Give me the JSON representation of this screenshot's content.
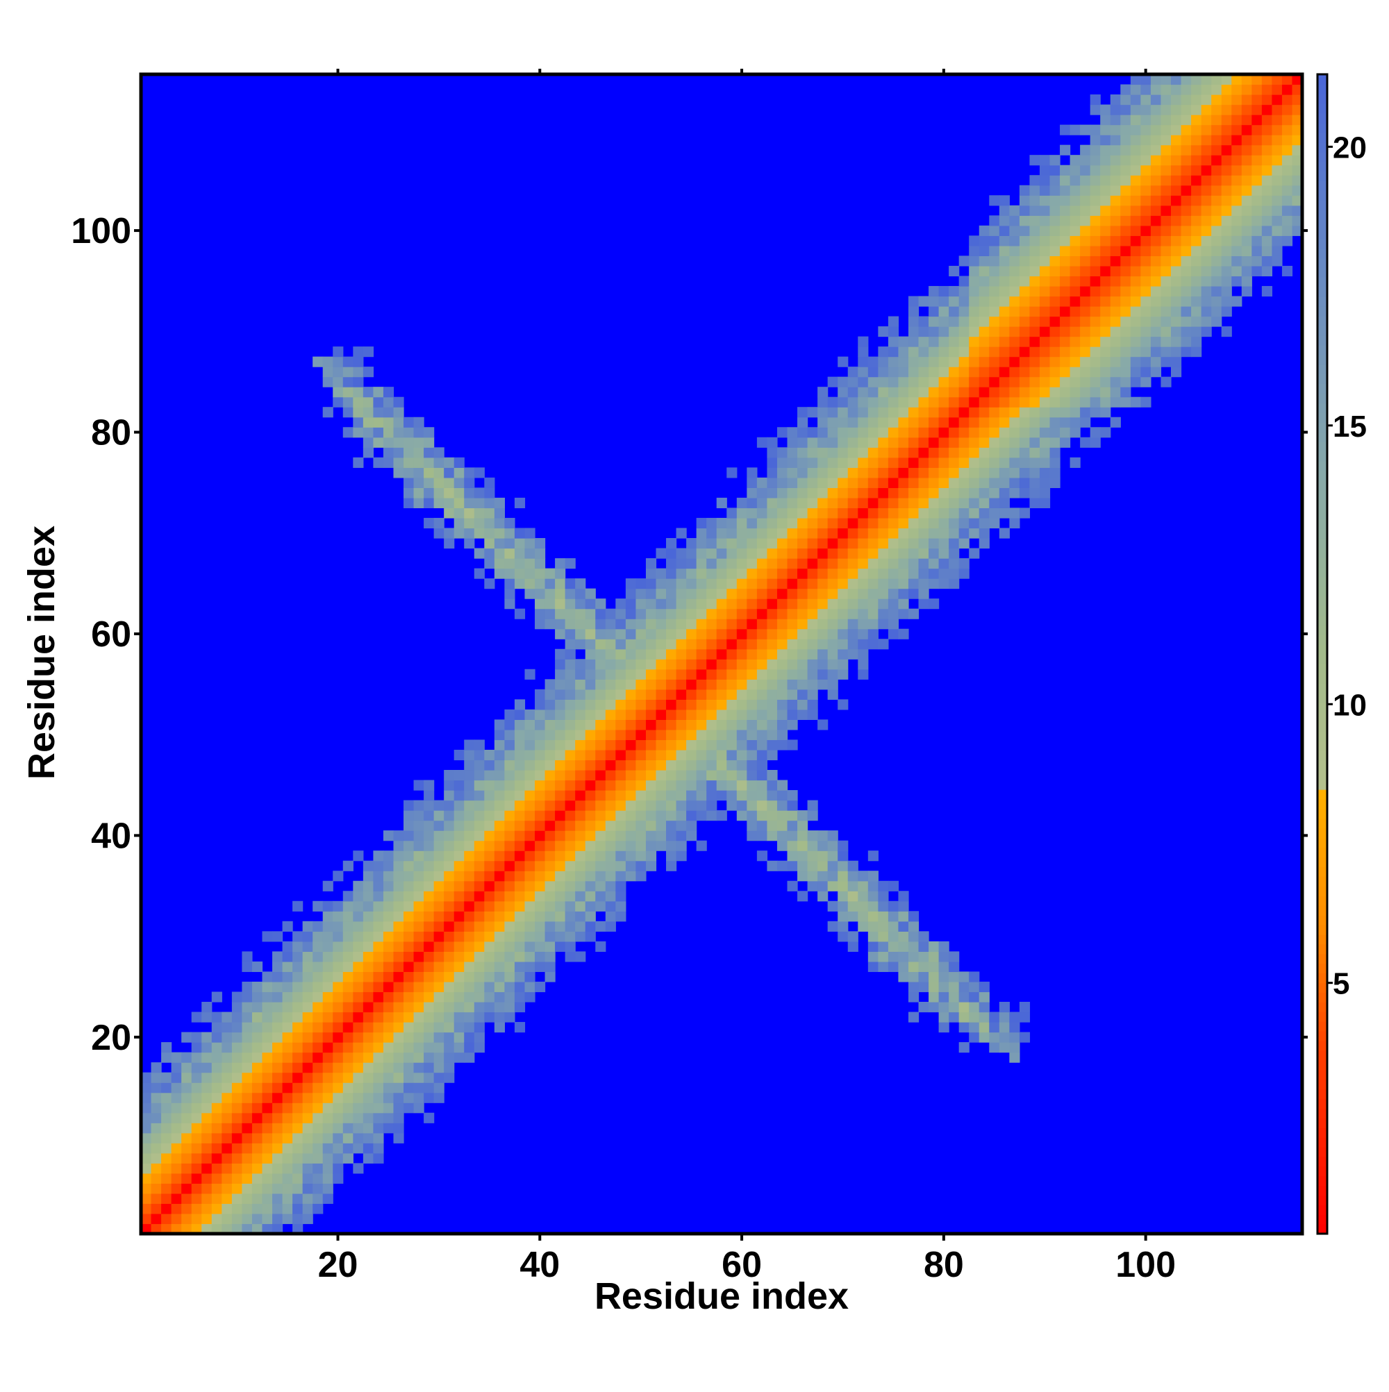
{
  "chart_data": {
    "type": "heatmap",
    "title": "",
    "xlabel": "Residue index",
    "ylabel": "Residue index",
    "xlim": [
      0.5,
      115.5
    ],
    "ylim": [
      0.5,
      115.5
    ],
    "x_ticks": [
      20,
      40,
      60,
      80,
      100
    ],
    "y_ticks": [
      20,
      40,
      60,
      80,
      100
    ],
    "x_tick_labels": [
      "20",
      "40",
      "60",
      "80",
      "100"
    ],
    "y_tick_labels": [
      "20",
      "40",
      "60",
      "80",
      "100"
    ],
    "n_residues": 115,
    "colorbar": {
      "range": [
        0.5,
        21.3
      ],
      "ticks": [
        5,
        10,
        15,
        20
      ],
      "tick_labels": [
        "5",
        "10",
        "15",
        "20"
      ],
      "colors": [
        {
          "value": 0.5,
          "color": "#ff0000"
        },
        {
          "value": 3.8,
          "color": "#ff4000"
        },
        {
          "value": 6.0,
          "color": "#ff8c00"
        },
        {
          "value": 8.4,
          "color": "#ffb000"
        },
        {
          "value": 8.5,
          "color": "#b4c08c"
        },
        {
          "value": 11.0,
          "color": "#a2ba8a"
        },
        {
          "value": 14.0,
          "color": "#88aaa8"
        },
        {
          "value": 18.0,
          "color": "#6688c4"
        },
        {
          "value": 21.3,
          "color": "#4a66d8"
        }
      ],
      "background_color": "#0000ff"
    },
    "features": {
      "diagonal": "distances increase away from the main diagonal; values below ~21 shown in color, larger distances shown as blue background",
      "antiparallel_contact_region": {
        "x_range": [
          17,
          90
        ],
        "y_range": [
          17,
          90
        ],
        "residue_sum_approx": 105
      }
    }
  }
}
